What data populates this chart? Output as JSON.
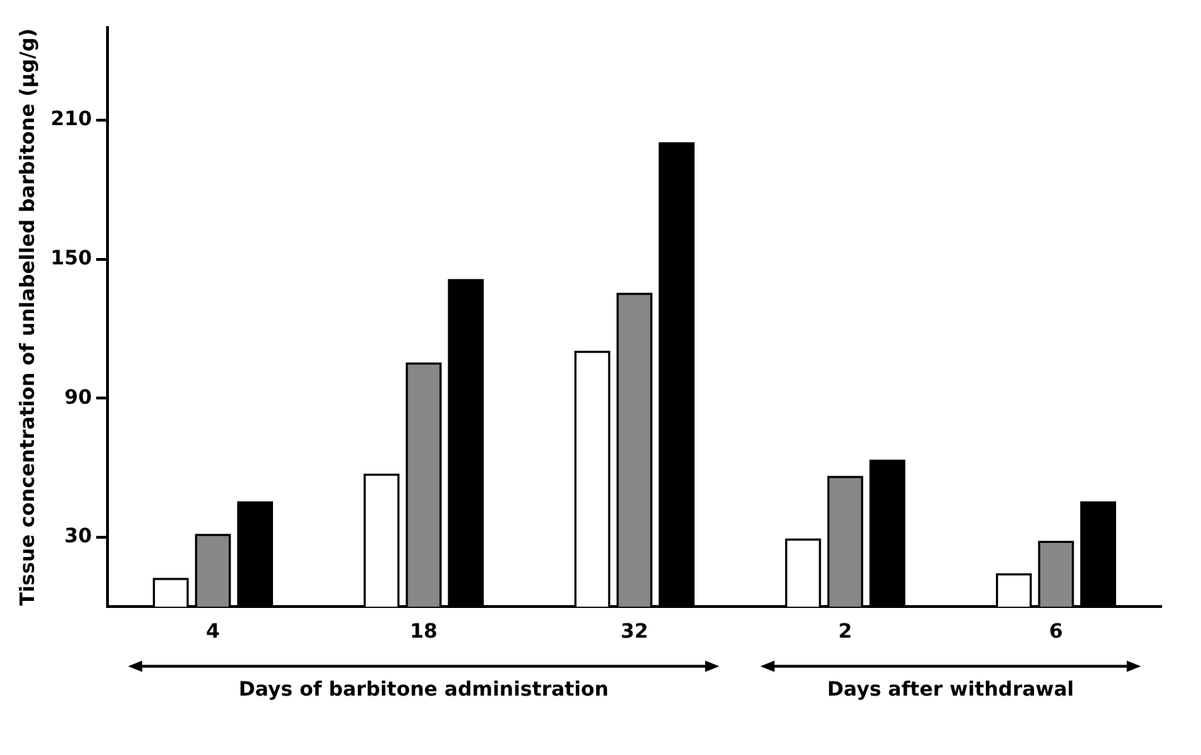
{
  "chart_data": {
    "type": "bar",
    "ylabel": "Tissue concentration of unlabelled barbitone (μg/g)",
    "categories": [
      "4",
      "18",
      "32",
      "2",
      "6"
    ],
    "series": [
      {
        "color": "#ffffff",
        "values": [
          12,
          57,
          110,
          29,
          14
        ]
      },
      {
        "color": "#888888",
        "values": [
          31,
          105,
          135,
          56,
          28
        ]
      },
      {
        "color": "#000000",
        "values": [
          45,
          141,
          200,
          63,
          45
        ]
      }
    ],
    "ylim": [
      0,
      250
    ],
    "yticks": [
      30,
      90,
      150,
      210
    ],
    "grid": false,
    "legend": false,
    "annotations": [
      "Days of barbitone administration",
      "Days after withdrawal"
    ]
  }
}
